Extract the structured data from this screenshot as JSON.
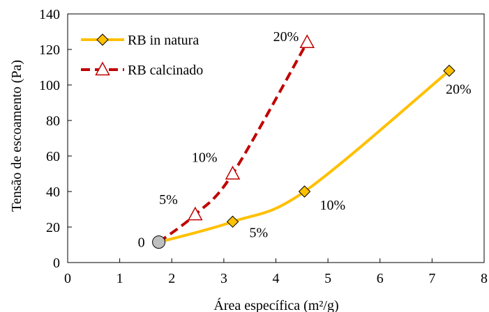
{
  "chart_data": {
    "type": "line",
    "xlabel": "Área específica (m²/g)",
    "ylabel": "Tensão de escoamento (Pa)",
    "xlim": [
      0,
      8
    ],
    "ylim": [
      0,
      140
    ],
    "xticks": [
      "0",
      "1",
      "2",
      "3",
      "4",
      "5",
      "6",
      "7",
      "8"
    ],
    "yticks": [
      "0",
      "20",
      "40",
      "60",
      "80",
      "100",
      "120",
      "140"
    ],
    "grid": false,
    "legend_position": "top-left",
    "origin_point": {
      "x": 1.75,
      "y": 11.5,
      "label": "0",
      "color": "#BFBFBF"
    },
    "series": [
      {
        "name": "RB in natura",
        "color": "#FFC000",
        "line_style": "solid",
        "marker": "diamond",
        "marker_fill": "#FFC000",
        "points": [
          {
            "x": 1.75,
            "y": 11.5,
            "label": ""
          },
          {
            "x": 3.17,
            "y": 23,
            "label": "5%"
          },
          {
            "x": 4.55,
            "y": 40,
            "label": "10%"
          },
          {
            "x": 7.33,
            "y": 108,
            "label": "20%"
          }
        ]
      },
      {
        "name": "RB calcinado",
        "color": "#C00000",
        "line_style": "dashed",
        "marker": "triangle-open",
        "marker_fill": "#FFFFFF",
        "points": [
          {
            "x": 1.75,
            "y": 11.5,
            "label": ""
          },
          {
            "x": 2.45,
            "y": 27,
            "label": "5%"
          },
          {
            "x": 3.17,
            "y": 50,
            "label": "10%"
          },
          {
            "x": 4.6,
            "y": 124,
            "label": "20%"
          }
        ]
      }
    ]
  }
}
